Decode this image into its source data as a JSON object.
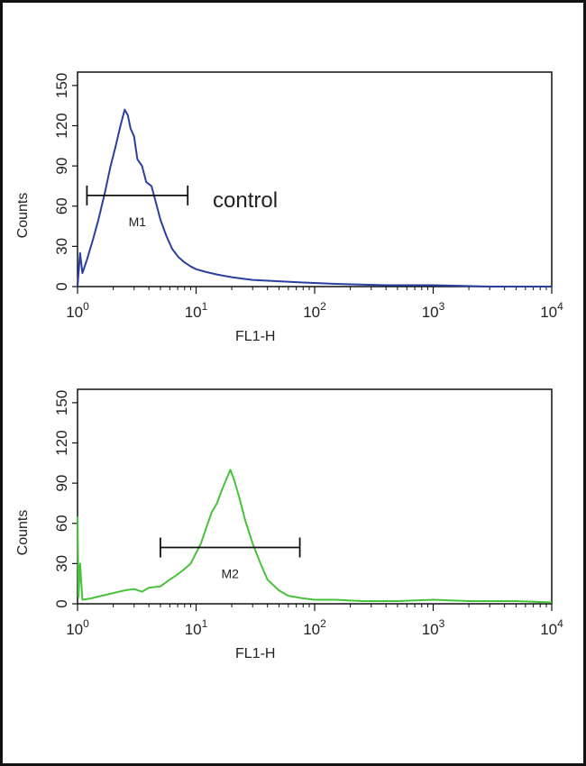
{
  "chart_data": [
    {
      "type": "line",
      "xlabel": "FL1-H",
      "ylabel": "Counts",
      "x_scale": "log",
      "xlim": [
        1,
        10000
      ],
      "ylim": [
        0,
        160
      ],
      "x_ticks": [
        {
          "value": 1,
          "base": "10",
          "exp": "0"
        },
        {
          "value": 10,
          "base": "10",
          "exp": "1"
        },
        {
          "value": 100,
          "base": "10",
          "exp": "2"
        },
        {
          "value": 1000,
          "base": "10",
          "exp": "3"
        },
        {
          "value": 10000,
          "base": "10",
          "exp": "4"
        }
      ],
      "y_ticks": [
        "0",
        "30",
        "60",
        "90",
        "120",
        "150"
      ],
      "y_tick_values": [
        0,
        30,
        60,
        90,
        120,
        150
      ],
      "series": [
        {
          "color": "#2b3fa0",
          "x": [
            1.0,
            1.05,
            1.1,
            1.2,
            1.35,
            1.5,
            1.7,
            1.9,
            2.1,
            2.3,
            2.5,
            2.65,
            2.8,
            3.0,
            3.2,
            3.5,
            3.8,
            4.2,
            4.6,
            5.0,
            5.6,
            6.3,
            7.1,
            8.0,
            9.0,
            10.0,
            12.0,
            15.0,
            20.0,
            30.0,
            50.0,
            80.0,
            150.0,
            400.0,
            1000.0,
            3000.0,
            10000.0
          ],
          "y": [
            0,
            25,
            10,
            20,
            35,
            50,
            70,
            90,
            105,
            120,
            132,
            128,
            118,
            112,
            95,
            90,
            78,
            75,
            62,
            50,
            38,
            28,
            22,
            18,
            15,
            13,
            11,
            9,
            7,
            5,
            4,
            3,
            2,
            1,
            1,
            0,
            0
          ]
        }
      ],
      "gate": {
        "label": "M1",
        "x_start": 1.2,
        "x_end": 8.5,
        "y": 68
      },
      "annotation": "control"
    },
    {
      "type": "line",
      "xlabel": "FL1-H",
      "ylabel": "Counts",
      "x_scale": "log",
      "xlim": [
        1,
        10000
      ],
      "ylim": [
        0,
        160
      ],
      "x_ticks": [
        {
          "value": 1,
          "base": "10",
          "exp": "0"
        },
        {
          "value": 10,
          "base": "10",
          "exp": "1"
        },
        {
          "value": 100,
          "base": "10",
          "exp": "2"
        },
        {
          "value": 1000,
          "base": "10",
          "exp": "3"
        },
        {
          "value": 10000,
          "base": "10",
          "exp": "4"
        }
      ],
      "y_ticks": [
        "0",
        "30",
        "60",
        "90",
        "120",
        "150"
      ],
      "y_tick_values": [
        0,
        30,
        60,
        90,
        120,
        150
      ],
      "series": [
        {
          "color": "#49c23b",
          "x": [
            1.0,
            1.02,
            1.05,
            1.1,
            1.3,
            1.6,
            2.0,
            2.5,
            3.0,
            3.5,
            4.0,
            5.0,
            6.0,
            7.0,
            8.0,
            9.0,
            10.0,
            11.0,
            12.0,
            13.5,
            15.0,
            16.5,
            18.0,
            19.5,
            21.0,
            23.0,
            26.0,
            30.0,
            35.0,
            40.0,
            50.0,
            60.0,
            80.0,
            100.0,
            150.0,
            250.0,
            500.0,
            1000.0,
            2000.0,
            5000.0,
            10000.0
          ],
          "y": [
            65,
            5,
            30,
            3,
            4,
            6,
            8,
            10,
            11,
            9,
            12,
            13,
            18,
            22,
            26,
            30,
            38,
            45,
            55,
            68,
            75,
            85,
            93,
            100,
            92,
            80,
            62,
            45,
            30,
            18,
            10,
            6,
            4,
            3,
            3,
            2,
            2,
            3,
            2,
            2,
            1
          ]
        }
      ],
      "gate": {
        "label": "M2",
        "x_start": 5.0,
        "x_end": 75.0,
        "y": 42
      }
    }
  ]
}
